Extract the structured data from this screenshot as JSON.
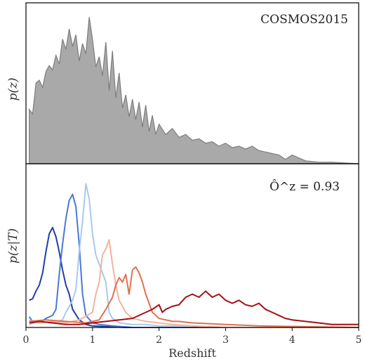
{
  "chart_data": [
    {
      "type": "area",
      "panel": "top",
      "annotation": "COSMOS2015",
      "ylabel": "p(z)",
      "xlim": [
        0,
        5
      ],
      "ylim": [
        0,
        1.05
      ],
      "fill_color": "#a9a9a9",
      "line_color": "#7d7d7d",
      "x": [
        0.05,
        0.1,
        0.15,
        0.2,
        0.25,
        0.3,
        0.35,
        0.4,
        0.45,
        0.5,
        0.55,
        0.6,
        0.65,
        0.7,
        0.75,
        0.8,
        0.85,
        0.9,
        0.95,
        1.0,
        1.05,
        1.1,
        1.15,
        1.2,
        1.25,
        1.3,
        1.35,
        1.4,
        1.45,
        1.5,
        1.55,
        1.6,
        1.65,
        1.7,
        1.75,
        1.8,
        1.85,
        1.9,
        1.95,
        2.0,
        2.1,
        2.2,
        2.3,
        2.4,
        2.5,
        2.6,
        2.7,
        2.8,
        2.9,
        3.0,
        3.1,
        3.2,
        3.3,
        3.4,
        3.5,
        3.6,
        3.7,
        3.8,
        3.9,
        4.0,
        4.2,
        4.4,
        4.6,
        4.8,
        5.0
      ],
      "y": [
        0.37,
        0.34,
        0.55,
        0.57,
        0.52,
        0.63,
        0.67,
        0.64,
        0.74,
        0.68,
        0.85,
        0.78,
        0.92,
        0.8,
        0.88,
        0.7,
        0.82,
        0.75,
        1.0,
        0.85,
        0.66,
        0.73,
        0.6,
        0.83,
        0.5,
        0.77,
        0.45,
        0.62,
        0.38,
        0.47,
        0.32,
        0.44,
        0.3,
        0.42,
        0.25,
        0.4,
        0.22,
        0.33,
        0.2,
        0.27,
        0.2,
        0.24,
        0.18,
        0.2,
        0.16,
        0.17,
        0.14,
        0.15,
        0.12,
        0.14,
        0.11,
        0.12,
        0.1,
        0.12,
        0.09,
        0.08,
        0.07,
        0.06,
        0.03,
        0.06,
        0.02,
        0.01,
        0.01,
        0.005,
        0.0
      ]
    },
    {
      "type": "line",
      "panel": "bottom",
      "annotation": "Ô^z = 0.93",
      "ylabel": "p(z|T)",
      "xlabel": "Redshift",
      "xlim": [
        0,
        5
      ],
      "ylim": [
        0,
        1.05
      ],
      "x_ticks": [
        "0",
        "1",
        "2",
        "3",
        "4",
        "5"
      ],
      "series": [
        {
          "color": "#1f3fa5",
          "x": [
            0.05,
            0.1,
            0.15,
            0.2,
            0.25,
            0.3,
            0.35,
            0.4,
            0.45,
            0.5,
            0.55,
            0.6,
            0.65,
            0.7,
            0.8,
            0.9,
            1.0,
            1.2,
            1.5,
            2.0,
            3.0,
            5.0
          ],
          "y": [
            0.18,
            0.19,
            0.24,
            0.28,
            0.36,
            0.5,
            0.62,
            0.66,
            0.6,
            0.5,
            0.38,
            0.28,
            0.22,
            0.12,
            0.05,
            0.02,
            0.01,
            0.005,
            0.0,
            0.0,
            0.0,
            0.0
          ]
        },
        {
          "color": "#4a78d6",
          "x": [
            0.05,
            0.1,
            0.2,
            0.3,
            0.4,
            0.45,
            0.5,
            0.55,
            0.6,
            0.65,
            0.7,
            0.75,
            0.8,
            0.85,
            0.9,
            1.0,
            1.1,
            1.3,
            1.6,
            2.0,
            3.0,
            5.0
          ],
          "y": [
            0.07,
            0.04,
            0.03,
            0.06,
            0.08,
            0.12,
            0.35,
            0.55,
            0.72,
            0.84,
            0.88,
            0.8,
            0.55,
            0.22,
            0.08,
            0.03,
            0.02,
            0.01,
            0.0,
            0.0,
            0.0,
            0.0
          ]
        },
        {
          "color": "#a9c9ef",
          "x": [
            0.05,
            0.2,
            0.4,
            0.55,
            0.6,
            0.7,
            0.75,
            0.8,
            0.85,
            0.9,
            0.95,
            1.0,
            1.05,
            1.1,
            1.2,
            1.25,
            1.3,
            1.4,
            1.6,
            1.8,
            2.0,
            2.5,
            3.0,
            5.0
          ],
          "y": [
            0.02,
            0.04,
            0.03,
            0.05,
            0.1,
            0.18,
            0.25,
            0.5,
            0.7,
            0.95,
            0.85,
            0.62,
            0.48,
            0.42,
            0.3,
            0.1,
            0.06,
            0.03,
            0.02,
            0.02,
            0.01,
            0.01,
            0.0,
            0.0
          ]
        },
        {
          "color": "#f2b39d",
          "x": [
            0.05,
            0.2,
            0.4,
            0.6,
            0.8,
            1.0,
            1.05,
            1.1,
            1.15,
            1.2,
            1.25,
            1.3,
            1.35,
            1.4,
            1.5,
            1.6,
            1.7,
            1.8,
            2.0,
            2.2,
            2.5,
            3.0,
            5.0
          ],
          "y": [
            0.05,
            0.03,
            0.04,
            0.03,
            0.05,
            0.1,
            0.22,
            0.3,
            0.48,
            0.52,
            0.58,
            0.42,
            0.28,
            0.18,
            0.1,
            0.06,
            0.05,
            0.04,
            0.03,
            0.02,
            0.01,
            0.0,
            0.0
          ]
        },
        {
          "color": "#e0714f",
          "x": [
            0.05,
            0.3,
            0.6,
            0.9,
            1.1,
            1.2,
            1.3,
            1.35,
            1.4,
            1.45,
            1.5,
            1.55,
            1.6,
            1.65,
            1.7,
            1.75,
            1.8,
            1.85,
            1.9,
            1.95,
            2.0,
            2.1,
            2.2,
            2.3,
            2.5,
            3.0,
            3.5,
            5.0
          ],
          "y": [
            0.04,
            0.05,
            0.04,
            0.03,
            0.05,
            0.12,
            0.2,
            0.28,
            0.33,
            0.3,
            0.35,
            0.22,
            0.38,
            0.4,
            0.36,
            0.3,
            0.22,
            0.16,
            0.1,
            0.08,
            0.06,
            0.05,
            0.04,
            0.04,
            0.03,
            0.02,
            0.01,
            0.0
          ]
        },
        {
          "color": "#a50f15",
          "x": [
            0.05,
            0.2,
            0.4,
            0.6,
            0.8,
            1.0,
            1.2,
            1.4,
            1.6,
            1.8,
            1.9,
            2.0,
            2.05,
            2.1,
            2.2,
            2.3,
            2.4,
            2.5,
            2.6,
            2.7,
            2.8,
            2.9,
            3.0,
            3.1,
            3.2,
            3.3,
            3.4,
            3.5,
            3.6,
            3.7,
            3.8,
            3.9,
            4.0,
            4.2,
            4.4,
            4.6,
            4.8,
            5.0
          ],
          "y": [
            0.03,
            0.04,
            0.03,
            0.02,
            0.02,
            0.03,
            0.04,
            0.05,
            0.06,
            0.1,
            0.12,
            0.15,
            0.1,
            0.12,
            0.14,
            0.15,
            0.2,
            0.22,
            0.2,
            0.24,
            0.2,
            0.22,
            0.18,
            0.16,
            0.18,
            0.15,
            0.14,
            0.16,
            0.12,
            0.1,
            0.08,
            0.06,
            0.05,
            0.04,
            0.03,
            0.02,
            0.02,
            0.02
          ]
        }
      ]
    }
  ]
}
